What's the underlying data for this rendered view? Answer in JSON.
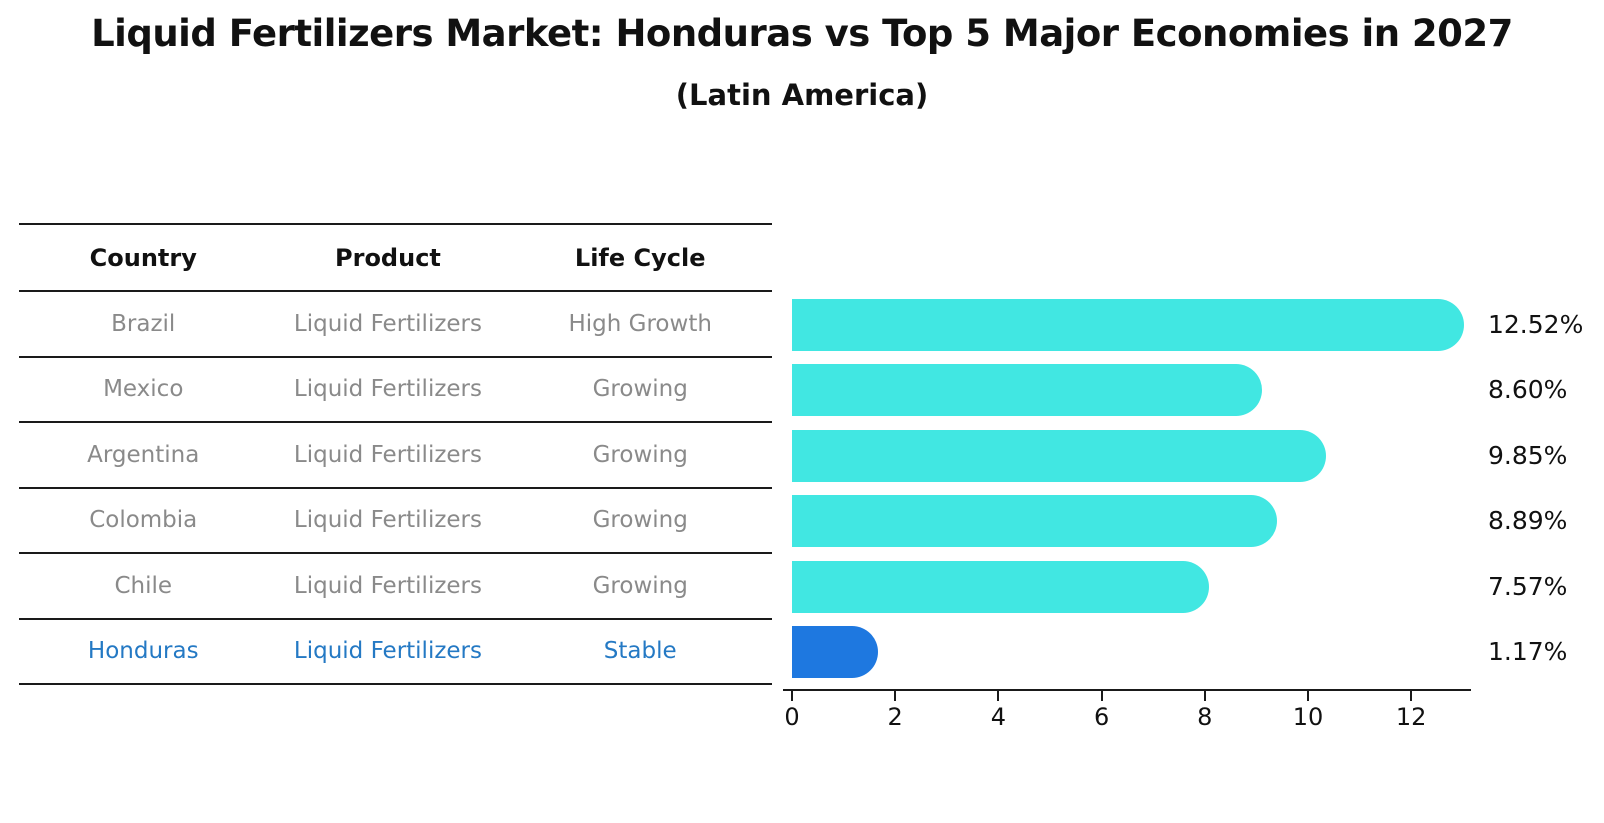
{
  "header": {
    "title": "Liquid Fertilizers Market: Honduras vs Top 5 Major Economies in 2027",
    "subtitle": "(Latin America)"
  },
  "table": {
    "columns": [
      "Country",
      "Product",
      "Life Cycle"
    ],
    "rows": [
      {
        "country": "Brazil",
        "product": "Liquid Fertilizers",
        "life_cycle": "High Growth",
        "highlighted": false
      },
      {
        "country": "Mexico",
        "product": "Liquid Fertilizers",
        "life_cycle": "Growing",
        "highlighted": false
      },
      {
        "country": "Argentina",
        "product": "Liquid Fertilizers",
        "life_cycle": "Growing",
        "highlighted": false
      },
      {
        "country": "Colombia",
        "product": "Liquid Fertilizers",
        "life_cycle": "Growing",
        "highlighted": false
      },
      {
        "country": "Chile",
        "product": "Liquid Fertilizers",
        "life_cycle": "Growing",
        "highlighted": false
      },
      {
        "country": "Honduras",
        "product": "Liquid Fertilizers",
        "life_cycle": "Stable",
        "highlighted": true
      }
    ]
  },
  "chart_data": {
    "type": "bar",
    "orientation": "horizontal",
    "title": "Liquid Fertilizers Market: Honduras vs Top 5 Major Economies in 2027 (Latin America)",
    "categories": [
      "Brazil",
      "Mexico",
      "Argentina",
      "Colombia",
      "Chile",
      "Honduras"
    ],
    "values": [
      12.52,
      8.6,
      9.85,
      8.89,
      7.57,
      1.17
    ],
    "value_labels": [
      "12.52%",
      "8.60%",
      "9.85%",
      "8.89%",
      "7.57%",
      "1.17%"
    ],
    "unit": "%",
    "x_ticks": [
      0,
      2,
      4,
      6,
      8,
      10,
      12
    ],
    "x_tick_labels": [
      "0",
      "2",
      "4",
      "6",
      "8",
      "10",
      "12"
    ],
    "xlim": [
      0,
      13.15
    ],
    "grid": false,
    "legend": false,
    "bar_color": "#41e7e2",
    "highlight_color": "#1e78e0",
    "highlight_index": 5
  },
  "colors": {
    "text_dark": "#111111",
    "text_gray": "#8a8a8a",
    "highlight_text": "#2479c4",
    "line": "#1a1a1a",
    "accent_cyan": "#41e7e2",
    "accent_blue": "#1e78e0"
  }
}
